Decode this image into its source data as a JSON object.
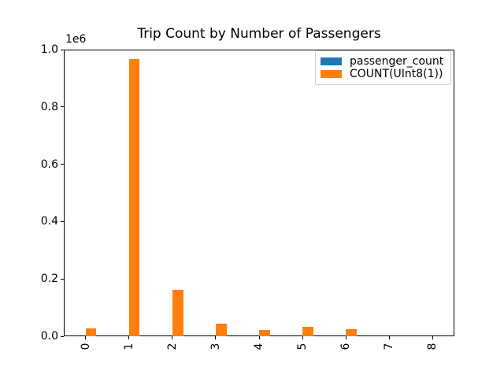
{
  "chart_data": {
    "type": "bar",
    "title": "Trip Count by Number of Passengers",
    "categories": [
      "0",
      "1",
      "2",
      "3",
      "4",
      "5",
      "6",
      "7",
      "8"
    ],
    "series": [
      {
        "name": "passenger_count",
        "color": "#1f77b4",
        "values": [
          0,
          1,
          2,
          3,
          4,
          5,
          6,
          7,
          8
        ]
      },
      {
        "name": "COUNT(UInt8(1))",
        "color": "#ff7f0e",
        "values": [
          27000,
          967000,
          162000,
          45000,
          21000,
          32000,
          26000,
          0,
          0
        ]
      }
    ],
    "xlabel": "",
    "ylabel": "",
    "ylim": [
      0,
      1000000
    ],
    "yticks": [
      0,
      0.2,
      0.4,
      0.6,
      0.8,
      1.0
    ],
    "ytick_labels": [
      "0.0",
      "0.2",
      "0.4",
      "0.6",
      "0.8",
      "1.0"
    ],
    "y_offset_label": "1e6",
    "x_tick_rotation": 90,
    "grid": false,
    "legend_position": "upper right",
    "background_color": "#ffffff",
    "spine_color": "#000000"
  }
}
